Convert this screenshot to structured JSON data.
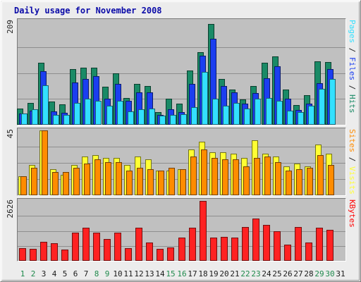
{
  "chart_data": {
    "type": "bar",
    "title": "Daily usage for November 2008",
    "days": [
      "1",
      "2",
      "3",
      "4",
      "5",
      "6",
      "7",
      "8",
      "9",
      "10",
      "11",
      "12",
      "13",
      "14",
      "15",
      "16",
      "17",
      "18",
      "19",
      "20",
      "21",
      "22",
      "23",
      "24",
      "25",
      "26",
      "27",
      "28",
      "29",
      "30",
      "31"
    ],
    "weekend_days": [
      "1",
      "2",
      "8",
      "9",
      "15",
      "16",
      "22",
      "23",
      "29",
      "30"
    ],
    "panels": [
      {
        "id": "hits_files_pages",
        "max_label": "209",
        "ylim": [
          0,
          209
        ],
        "legend": [
          {
            "text": "Pages",
            "color": "#33e0ff"
          },
          {
            "text": " / ",
            "color": "#222222"
          },
          {
            "text": "Files",
            "color": "#1b3ef0"
          },
          {
            "text": " / ",
            "color": "#222222"
          },
          {
            "text": "Hits",
            "color": "#1a8a66"
          }
        ],
        "series": [
          {
            "name": "Hits",
            "color": "#1a8a66",
            "values": [
              33,
              44,
              125,
              47,
              41,
              113,
              115,
              115,
              77,
              104,
              54,
              83,
              78,
              26,
              52,
              42,
              110,
              147,
              204,
              93,
              71,
              51,
              78,
              125,
              138,
              71,
              40,
              60,
              128,
              127,
              0
            ]
          },
          {
            "name": "Files",
            "color": "#1b3ef0",
            "values": [
              23,
              29,
              108,
              27,
              24,
              85,
              93,
              98,
              52,
              82,
              49,
              66,
              65,
              20,
              31,
              25,
              83,
              139,
              174,
              78,
              65,
              42,
              64,
              94,
              118,
              52,
              30,
              42,
              84,
              113,
              0
            ]
          },
          {
            "name": "Pages",
            "color": "#33e0ff",
            "values": [
              23,
              31,
              80,
              20,
              20,
              44,
              53,
              49,
              38,
              49,
              27,
              31,
              33,
              18,
              20,
              22,
              35,
              106,
              52,
              38,
              44,
              33,
              53,
              54,
              48,
              29,
              26,
              38,
              73,
              92,
              0
            ]
          }
        ]
      },
      {
        "id": "visits_sites",
        "max_label": "45",
        "ylim": [
          0,
          45
        ],
        "legend": [
          {
            "text": "Sites",
            "color": "#ff8c00"
          },
          {
            "text": " / ",
            "color": "#222222"
          },
          {
            "text": "Visits",
            "color": "#ffff33"
          }
        ],
        "series": [
          {
            "name": "Visits",
            "color": "#ffff33",
            "values": [
              13,
              21,
              45,
              18,
              14,
              21,
              27,
              28,
              26,
              26,
              21,
              27,
              25,
              17,
              17,
              18,
              32,
              37,
              30,
              30,
              29,
              26,
              38,
              29,
              27,
              20,
              22,
              20,
              35,
              29,
              0
            ]
          },
          {
            "name": "Sites",
            "color": "#ff8c00",
            "values": [
              13,
              19,
              45,
              16,
              16,
              19,
              22,
              25,
              23,
              23,
              17,
              19,
              18,
              17,
              19,
              18,
              27,
              32,
              26,
              25,
              25,
              20,
              26,
              27,
              23,
              17,
              18,
              19,
              28,
              21,
              0
            ]
          }
        ]
      },
      {
        "id": "kbytes",
        "max_label": "2626",
        "ylim": [
          0,
          2626
        ],
        "legend": [
          {
            "text": "KBytes",
            "color": "#ff0000"
          }
        ],
        "series": [
          {
            "name": "KBytes",
            "color": "#ff2222",
            "values": [
              567,
              538,
              824,
              778,
              484,
              1233,
              1451,
              1233,
              944,
              1233,
              547,
              1451,
              817,
              538,
              594,
              1011,
              1451,
              2626,
              1011,
              1060,
              1029,
              1493,
              1856,
              1567,
              1290,
              701,
              1493,
              817,
              1451,
              1364,
              0
            ]
          }
        ]
      }
    ]
  }
}
